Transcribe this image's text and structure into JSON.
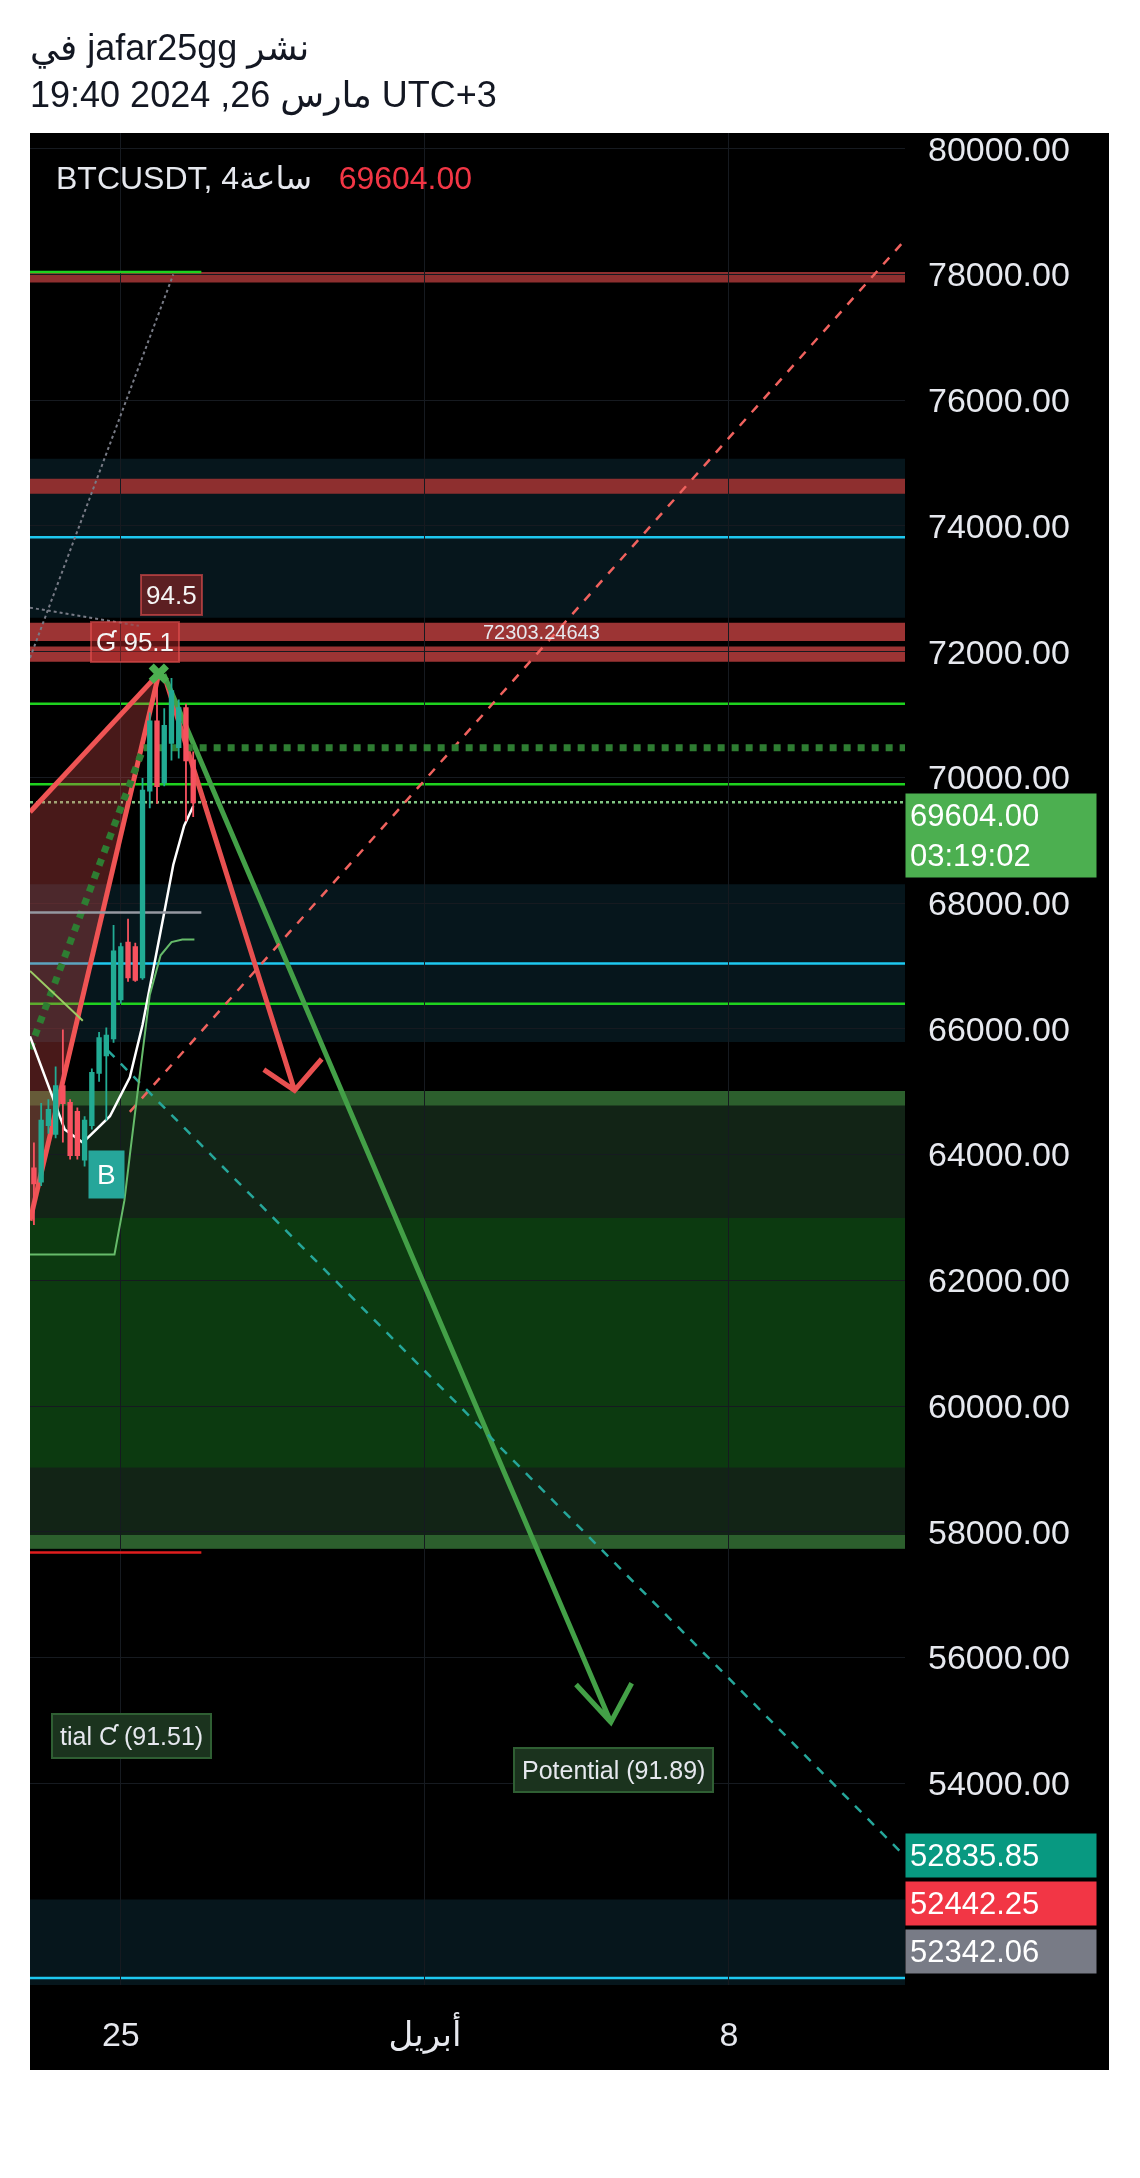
{
  "chart_data": {
    "type": "candlestick",
    "title": "BTCUSDT, 4ساعة",
    "subtitle": "نشر jafar25gg في\nUTC+3 مارس 26, 2024 19:40",
    "x": [
      "2024-03-23T00:00",
      "2024-03-23T04:00",
      "2024-03-23T08:00",
      "2024-03-23T12:00",
      "2024-03-23T16:00",
      "2024-03-23T20:00",
      "2024-03-24T00:00",
      "2024-03-24T04:00",
      "2024-03-24T08:00",
      "2024-03-24T12:00",
      "2024-03-24T16:00",
      "2024-03-24T20:00",
      "2024-03-25T00:00",
      "2024-03-25T04:00",
      "2024-03-25T08:00",
      "2024-03-25T12:00",
      "2024-03-25T16:00",
      "2024-03-25T20:00",
      "2024-03-26T00:00",
      "2024-03-26T04:00",
      "2024-03-26T08:00",
      "2024-03-26T12:00",
      "2024-03-26T16:00"
    ],
    "ohlc": [
      [
        63780,
        64190,
        62880,
        63540
      ],
      [
        63570,
        64820,
        63500,
        64540
      ],
      [
        64470,
        64880,
        64330,
        64710
      ],
      [
        64330,
        65400,
        64260,
        65090
      ],
      [
        65090,
        65990,
        64190,
        64820
      ],
      [
        64820,
        64880,
        63920,
        63990
      ],
      [
        64680,
        64750,
        63920,
        63990
      ],
      [
        63920,
        64610,
        63810,
        64540
      ],
      [
        64470,
        65370,
        64400,
        65300
      ],
      [
        65300,
        65950,
        65160,
        65850
      ],
      [
        65580,
        66020,
        64540,
        65890
      ],
      [
        65850,
        67650,
        65780,
        67230
      ],
      [
        66470,
        67370,
        66400,
        67300
      ],
      [
        67370,
        67750,
        66750,
        66820
      ],
      [
        67300,
        67370,
        66750,
        66780
      ],
      [
        66820,
        69990,
        66780,
        69790
      ],
      [
        69790,
        71030,
        69510,
        70890
      ],
      [
        70890,
        71440,
        69580,
        69860
      ],
      [
        69920,
        71100,
        69860,
        70820
      ],
      [
        70550,
        71580,
        70270,
        71370
      ],
      [
        70480,
        71240,
        70300,
        71100
      ],
      [
        71100,
        71170,
        69300,
        70270
      ],
      [
        70270,
        70410,
        69370,
        69604
      ]
    ],
    "colors": [
      "#f7525f",
      "#22ab94",
      "#22ab94",
      "#22ab94",
      "#f7525f",
      "#f7525f",
      "#f7525f",
      "#22ab94",
      "#22ab94",
      "#22ab94",
      "#22ab94",
      "#22ab94",
      "#22ab94",
      "#f7525f",
      "#f7525f",
      "#22ab94",
      "#22ab94",
      "#f7525f",
      "#22ab94",
      "#22ab94",
      "#22ab94",
      "#f7525f",
      "#f7525f"
    ],
    "xlim": [
      "2024-03-22T21:50",
      "2024-04-12T01:15"
    ],
    "xticks": [
      {
        "value": "2024-03-25",
        "label": "25"
      },
      {
        "value": "2024-04-01",
        "label": "أبريل"
      },
      {
        "value": "2024-04-08",
        "label": "8"
      }
    ],
    "ylim": [
      50790,
      80250
    ],
    "yticks": [
      {
        "value": 80000,
        "label": "80000.00"
      },
      {
        "value": 78000,
        "label": "78000.00"
      },
      {
        "value": 76000,
        "label": "76000.00"
      },
      {
        "value": 74000,
        "label": "74000.00"
      },
      {
        "value": 72000,
        "label": "72000.00"
      },
      {
        "value": 70000,
        "label": "70000.00"
      },
      {
        "value": 68000,
        "label": "68000.00"
      },
      {
        "value": 66000,
        "label": "66000.00"
      },
      {
        "value": 64000,
        "label": "64000.00"
      },
      {
        "value": 62000,
        "label": "62000.00"
      },
      {
        "value": 60000,
        "label": "60000.00"
      },
      {
        "value": 58000,
        "label": "58000.00"
      },
      {
        "value": 56000,
        "label": "56000.00"
      },
      {
        "value": 54000,
        "label": "54000.00"
      }
    ],
    "grid": true,
    "bands": [
      {
        "axis": "y",
        "from": 72540,
        "to": 75070,
        "color": "#06161c"
      },
      {
        "axis": "y",
        "from": 65790,
        "to": 68300,
        "color": "#06161c"
      },
      {
        "axis": "y",
        "from": 50790,
        "to": 52150,
        "color": "#06161c"
      },
      {
        "axis": "y",
        "from": 57730,
        "to": 65010,
        "color": "#122416"
      },
      {
        "axis": "y",
        "from": 59020,
        "to": 62990,
        "color": "#0c3a10"
      },
      {
        "axis": "y",
        "from": 64780,
        "to": 65010,
        "color": "#2c5f2d"
      },
      {
        "axis": "y",
        "from": 57730,
        "to": 57950,
        "color": "#2c5f2d"
      },
      {
        "axis": "y",
        "from": 77870,
        "to": 78040,
        "color": "#8e2f2f"
      },
      {
        "axis": "y",
        "from": 74510,
        "to": 74750,
        "color": "#8e2f2f"
      },
      {
        "axis": "y",
        "from": 72170,
        "to": 72460,
        "color": "#9c3434"
      },
      {
        "axis": "y",
        "from": 71840,
        "to": 72080,
        "color": "#9c3434"
      }
    ],
    "ref_lines": [
      {
        "axis": "y",
        "value": 71170,
        "color": "#1fd21f"
      },
      {
        "axis": "y",
        "value": 69890,
        "color": "#1fd21f"
      },
      {
        "axis": "y",
        "value": 66400,
        "color": "#1fd21f"
      },
      {
        "axis": "y",
        "value": 73820,
        "color": "#1ec8f0"
      },
      {
        "axis": "y",
        "value": 67040,
        "color": "#1ec8f0"
      },
      {
        "axis": "y",
        "value": 50900,
        "color": "#1ec8f0"
      },
      {
        "axis": "y",
        "value": 69604,
        "color": "#81c784",
        "line_style": "dotted"
      }
    ],
    "series": [
      {
        "type": "line",
        "color": "#f05454",
        "x": [
          "2024-03-22T21:50",
          "2024-03-25T21:00"
        ],
        "values": [
          69450,
          71650
        ],
        "lower": [
          62950,
          71650
        ],
        "upper": [
          69450,
          71650
        ]
      },
      {
        "type": "line",
        "color": "#f05454",
        "x": [
          "2024-03-22T21:50",
          "2024-03-25T21:00"
        ],
        "values": [
          62950,
          71650
        ]
      },
      {
        "type": "line",
        "color": "#e85050",
        "x": [
          "2024-03-26T01:00",
          "2024-03-29T00:00",
          "2024-03-28T07:00",
          "2024-03-29T00:00",
          "2024-03-29T15:00"
        ],
        "values": [
          71530,
          65020,
          65350,
          65020,
          65520
        ]
      },
      {
        "type": "line",
        "color": "#43a047",
        "x": [
          "2024-03-25T23:45",
          "2024-04-05T06:45",
          "2024-04-04T11:30",
          "2024-04-05T06:45",
          "2024-04-05T18:15"
        ],
        "values": [
          71640,
          54970,
          55570,
          54970,
          55590
        ]
      },
      {
        "type": "line",
        "line_style": "dashed",
        "color": "#f0625e",
        "x": [
          "2024-03-25T05:00",
          "2024-04-12T01:15"
        ],
        "values": [
          64680,
          78550
        ]
      },
      {
        "type": "line",
        "line_style": "dashed",
        "color": "#26a69a",
        "x": [
          "2024-03-24T17:00",
          "2024-04-12T01:15"
        ],
        "values": [
          65650,
          52835.85
        ]
      },
      {
        "type": "line",
        "line_style": "dotted",
        "color": "#2e7d32",
        "x": [
          "2024-03-22T21:50",
          "2024-03-25T12:30",
          "2024-04-12T01:15"
        ],
        "values": [
          65680,
          70470,
          70470
        ]
      },
      {
        "type": "line",
        "color": "#ffffff",
        "x": [
          "2024-03-22T21:50",
          "2024-03-23T17:00",
          "2024-03-24T03:00",
          "2024-03-24T18:00",
          "2024-03-25T05:00",
          "2024-03-25T12:00",
          "2024-03-25T18:00",
          "2024-03-26T00:00",
          "2024-03-26T05:00",
          "2024-03-26T11:00",
          "2024-03-26T16:00"
        ],
        "values": [
          65880,
          64400,
          64190,
          64610,
          65230,
          66060,
          66950,
          67850,
          68610,
          69230,
          69540
        ]
      },
      {
        "type": "line",
        "color": "#66bb6a",
        "x": [
          "2024-03-22T21:50",
          "2024-03-24T20:30",
          "2024-03-25T02:00",
          "2024-03-25T05:00",
          "2024-03-25T10:00",
          "2024-03-25T16:00",
          "2024-03-25T22:00",
          "2024-03-26T04:00",
          "2024-03-26T10:00",
          "2024-03-26T16:40"
        ],
        "values": [
          62410,
          62410,
          63270,
          63990,
          65160,
          66540,
          67170,
          67380,
          67420,
          67420
        ]
      },
      {
        "type": "line",
        "color": "#9ccc65",
        "x": [
          "2024-03-22T21:50",
          "2024-03-24T03:00"
        ],
        "values": [
          66920,
          66130
        ]
      },
      {
        "type": "line",
        "line_style": "dotted",
        "color": "#787b86",
        "x": [
          "2024-03-22T21:50",
          "2024-03-26T05:00"
        ],
        "values": [
          71900,
          78000
        ]
      },
      {
        "type": "line",
        "line_style": "dotted",
        "color": "#787b86",
        "x": [
          "2024-03-22T21:50",
          "2024-03-25T10:00"
        ],
        "values": [
          72700,
          72410
        ]
      },
      {
        "type": "line",
        "color": "#1fd21f",
        "x": [
          "2024-03-22T21:50",
          "2024-03-26T20:30"
        ],
        "values": [
          78040,
          78040
        ]
      },
      {
        "type": "line",
        "color": "#9598a1",
        "x": [
          "2024-03-22T21:50",
          "2024-03-26T20:30"
        ],
        "values": [
          67850,
          67850
        ]
      },
      {
        "type": "line",
        "color": "#e01e1e",
        "x": [
          "2024-03-22T21:50",
          "2024-03-26T20:30"
        ],
        "values": [
          57670,
          57670
        ]
      },
      {
        "type": "scatter",
        "marker": "cross",
        "color": "#4caf50",
        "x": [
          "2024-03-25T21:00"
        ],
        "values": [
          71650
        ]
      }
    ],
    "annotations": [
      "69604.00",
      "72303.24643",
      "94.5",
      "Ɠ 95.1",
      "B",
      "tial Ƈ (91.51)",
      "Potential (91.89)",
      "69604.00\n03:19:02",
      "52835.85",
      "52442.25",
      "52342.06"
    ]
  }
}
